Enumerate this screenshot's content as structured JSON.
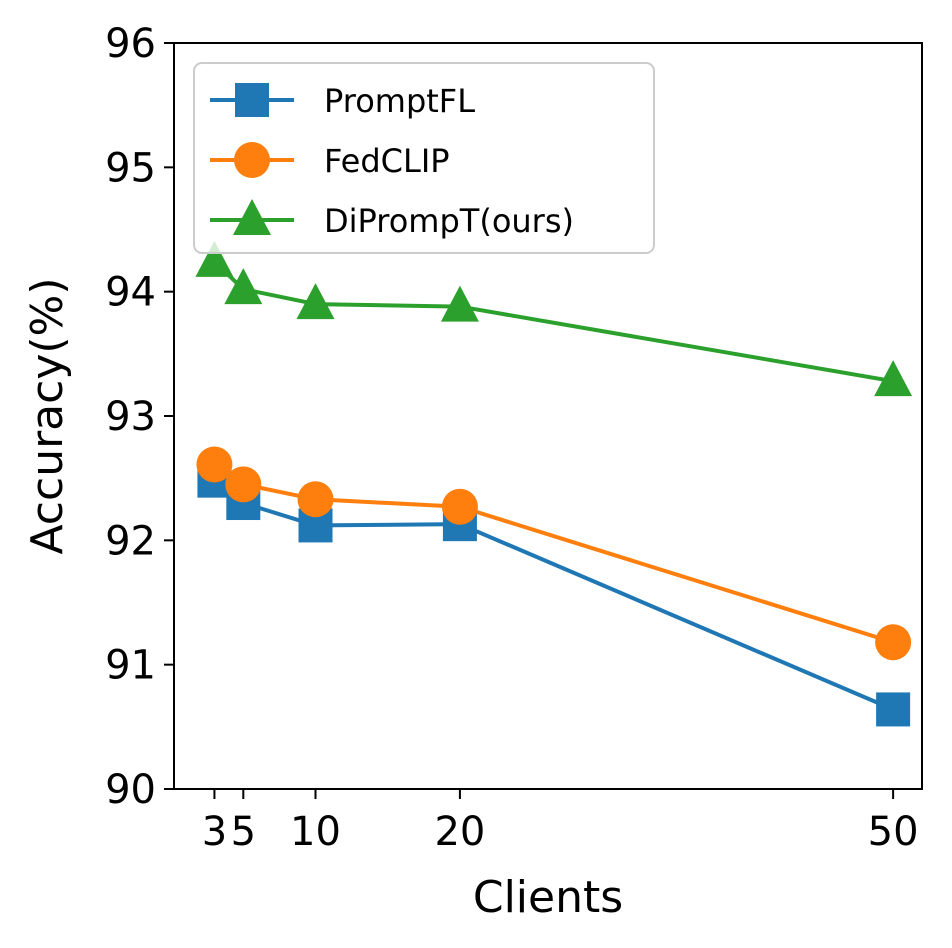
{
  "chart_data": {
    "type": "line",
    "title": "",
    "xlabel": "Clients",
    "ylabel": "Accuracy(%)",
    "x": [
      3,
      5,
      10,
      20,
      50
    ],
    "xticks": [
      3,
      5,
      10,
      20,
      50
    ],
    "xtick_labels": [
      "3",
      "5",
      "10",
      "20",
      "50"
    ],
    "xlim": [
      0.2,
      52
    ],
    "ylim": [
      90,
      96
    ],
    "yticks": [
      90,
      91,
      92,
      93,
      94,
      95,
      96
    ],
    "ytick_labels": [
      "90",
      "91",
      "92",
      "93",
      "94",
      "95",
      "96"
    ],
    "grid": false,
    "legend_position": "top-left",
    "series": [
      {
        "name": "PromptFL",
        "color": "#1f77b4",
        "marker": "square",
        "values": [
          92.48,
          92.3,
          92.12,
          92.13,
          90.64
        ]
      },
      {
        "name": "FedCLIP",
        "color": "#ff7f0e",
        "marker": "circle",
        "values": [
          92.61,
          92.45,
          92.33,
          92.27,
          91.18
        ]
      },
      {
        "name": "DiPrompT(ours)",
        "color": "#2ca02c",
        "marker": "triangle",
        "values": [
          94.24,
          94.02,
          93.9,
          93.88,
          93.28
        ]
      }
    ]
  }
}
